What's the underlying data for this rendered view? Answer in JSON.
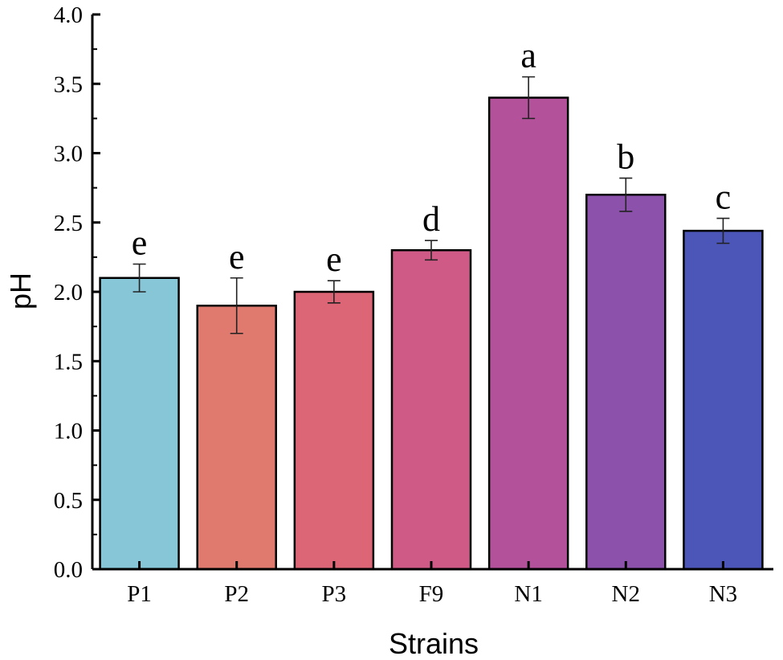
{
  "chart_data": {
    "type": "bar",
    "title": "",
    "xlabel": "Strains",
    "ylabel": "pH",
    "ylim": [
      0,
      4.0
    ],
    "yticks": [
      "0.0",
      "0.5",
      "1.0",
      "1.5",
      "2.0",
      "2.5",
      "3.0",
      "3.5",
      "4.0"
    ],
    "categories": [
      "P1",
      "P2",
      "P3",
      "F9",
      "N1",
      "N2",
      "N3"
    ],
    "values": [
      2.1,
      1.9,
      2.0,
      2.3,
      3.4,
      2.7,
      2.44
    ],
    "errors": [
      0.1,
      0.2,
      0.08,
      0.07,
      0.15,
      0.12,
      0.09
    ],
    "significance": [
      "e",
      "e",
      "e",
      "d",
      "a",
      "b",
      "c"
    ],
    "colors": [
      "#86c6d6",
      "#e07a6e",
      "#dc6676",
      "#cf5a86",
      "#b3529a",
      "#8c52ab",
      "#4b56b8"
    ],
    "grid": false,
    "legend": "none"
  }
}
